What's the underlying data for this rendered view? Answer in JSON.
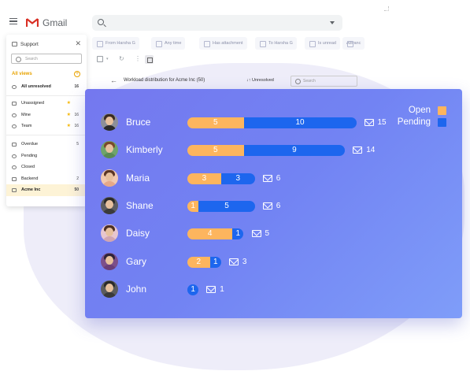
{
  "app": {
    "name": "Gmail"
  },
  "sidebar": {
    "title": "Support",
    "search_placeholder": "Search",
    "views_label": "All views",
    "items": [
      {
        "label": "All unresolved",
        "count": "16"
      },
      {
        "label": "Unassigned"
      },
      {
        "label": "Mine",
        "count": "16"
      },
      {
        "label": "Team",
        "count": "16"
      },
      {
        "label": "Overdue",
        "count": "5"
      },
      {
        "label": "Pending"
      },
      {
        "label": "Closed"
      },
      {
        "label": "Backend",
        "count": "2"
      },
      {
        "label": "Acme Inc",
        "count": "50"
      }
    ]
  },
  "filters": [
    "From Harsha G",
    "Any time",
    "Has attachment",
    "To Harsha G",
    "Is unread",
    "Advanc"
  ],
  "workload": {
    "back": "←",
    "title": "Workload distribution for Acme Inc (50)",
    "sort": "↓↑ Unresolved",
    "search_placeholder": "Search"
  },
  "legend": [
    {
      "label": "Open",
      "color": "#fdb55e"
    },
    {
      "label": "Pending",
      "color": "#1d66ee"
    }
  ],
  "chart_data": {
    "type": "bar",
    "categories": [
      "Bruce",
      "Kimberly",
      "Maria",
      "Shane",
      "Daisy",
      "Gary",
      "John"
    ],
    "series": [
      {
        "name": "Open",
        "values": [
          5,
          5,
          3,
          1,
          4,
          2,
          0
        ]
      },
      {
        "name": "Pending",
        "values": [
          10,
          9,
          3,
          5,
          1,
          1,
          1
        ]
      }
    ],
    "totals": [
      15,
      14,
      6,
      6,
      5,
      3,
      1
    ]
  },
  "agents": [
    {
      "name": "Bruce",
      "open": "5",
      "pending": "10",
      "total": "15",
      "hair": "#3a2a22",
      "shirt": "#2b2b2b",
      "bg": "#8c8f99"
    },
    {
      "name": "Kimberly",
      "open": "5",
      "pending": "9",
      "total": "14",
      "hair": "#7a4a2a",
      "shirt": "#5a8a54",
      "bg": "#6fa46b"
    },
    {
      "name": "Maria",
      "open": "3",
      "pending": "3",
      "total": "6",
      "hair": "#5a3423",
      "shirt": "#e6a888",
      "bg": "#f1c9b0"
    },
    {
      "name": "Shane",
      "open": "1",
      "pending": "5",
      "total": "6",
      "hair": "#2a2a2a",
      "shirt": "#3b3b3b",
      "bg": "#5d5d60"
    },
    {
      "name": "Daisy",
      "open": "4",
      "pending": "1",
      "total": "5",
      "hair": "#4a2f24",
      "shirt": "#d1a5b1",
      "bg": "#e7c6cf"
    },
    {
      "name": "Gary",
      "open": "2",
      "pending": "1",
      "total": "3",
      "hair": "#2e2438",
      "shirt": "#6a3e78",
      "bg": "#7c4f8a"
    },
    {
      "name": "John",
      "open": "",
      "pending": "1",
      "total": "1",
      "hair": "#2a2a2a",
      "shirt": "#3a3a3a",
      "bg": "#5c5c5c"
    }
  ]
}
